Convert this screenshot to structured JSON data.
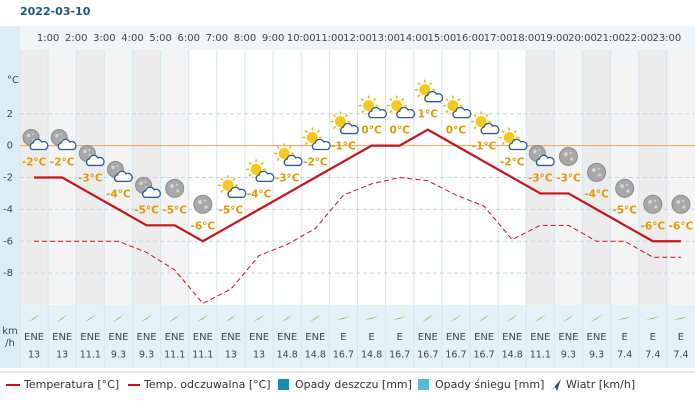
{
  "chart_data": {
    "type": "line",
    "title": "2022-03-10",
    "y_label": "°C",
    "categories": [
      null,
      "1:00",
      "2:00",
      "3:00",
      "4:00",
      "5:00",
      "6:00",
      "7:00",
      "8:00",
      "9:00",
      "10:00",
      "11:00",
      "12:00",
      "13:00",
      "14:00",
      "15:00",
      "16:00",
      "17:00",
      "18:00",
      "19:00",
      "20:00",
      "21:00",
      "22:00",
      "23:00"
    ],
    "ylim": [
      -10,
      6
    ],
    "yticks": [
      -8,
      -6,
      -4,
      -2,
      0,
      2
    ],
    "grid": true,
    "series": [
      {
        "name": "Temperatura [°C]",
        "color": "#c8141c",
        "values": [
          -2,
          -2,
          -3,
          -4,
          -5,
          -5,
          -6,
          -5,
          -4,
          -3,
          -2,
          -1,
          0,
          0,
          1,
          0,
          -1,
          -2,
          -3,
          -3,
          -4,
          -5,
          -6,
          -6
        ],
        "value_labels": [
          "-2°C",
          "-2°C",
          "-3°C",
          "-4°C",
          "-5°C",
          "-5°C",
          "-6°C",
          "-5°C",
          "-4°C",
          "-3°C",
          "-2°C",
          "-1°C",
          "0°C",
          "0°C",
          "1°C",
          "0°C",
          "-1°C",
          "-2°C",
          "-3°C",
          "-3°C",
          "-4°C",
          "-5°C",
          "-6°C",
          "-6°C"
        ]
      },
      {
        "name": "Temp. odczuwalna [°C]",
        "color": "#c8141c",
        "values": [
          -6,
          -6,
          -6,
          -6,
          -6.7,
          -7.8,
          -9.9,
          -9,
          -6.9,
          -6.2,
          -5.2,
          -3.1,
          -2.4,
          -2,
          -2.2,
          -3.1,
          -3.8,
          -5.9,
          -5,
          -5,
          -6,
          -6,
          -7,
          -7
        ]
      }
    ],
    "legend_extra": [
      {
        "name": "Opady deszczu [mm]",
        "color": "#1a8ab0"
      },
      {
        "name": "Opady śniegu [mm]",
        "color": "#5ab9d6"
      },
      {
        "name": "Wiatr [km/h]",
        "color": "#2b4d73"
      }
    ],
    "wind": {
      "unit_lines": [
        "km",
        "/h"
      ],
      "directions": [
        "ENE",
        "ENE",
        "ENE",
        "ENE",
        "ENE",
        "ENE",
        "ENE",
        "ENE",
        "ENE",
        "ENE",
        "ENE",
        "E",
        "E",
        "E",
        "ENE",
        "ENE",
        "ENE",
        "ENE",
        "ENE",
        "ENE",
        "ENE",
        "E",
        "E",
        "E"
      ],
      "speeds": [
        13,
        13,
        11.1,
        9.3,
        9.3,
        11.1,
        11.1,
        13,
        13,
        14.8,
        14.8,
        16.7,
        14.8,
        16.7,
        16.7,
        16.7,
        16.7,
        14.8,
        11.1,
        9.3,
        9.3,
        7.4,
        7.4,
        7.4
      ]
    }
  }
}
